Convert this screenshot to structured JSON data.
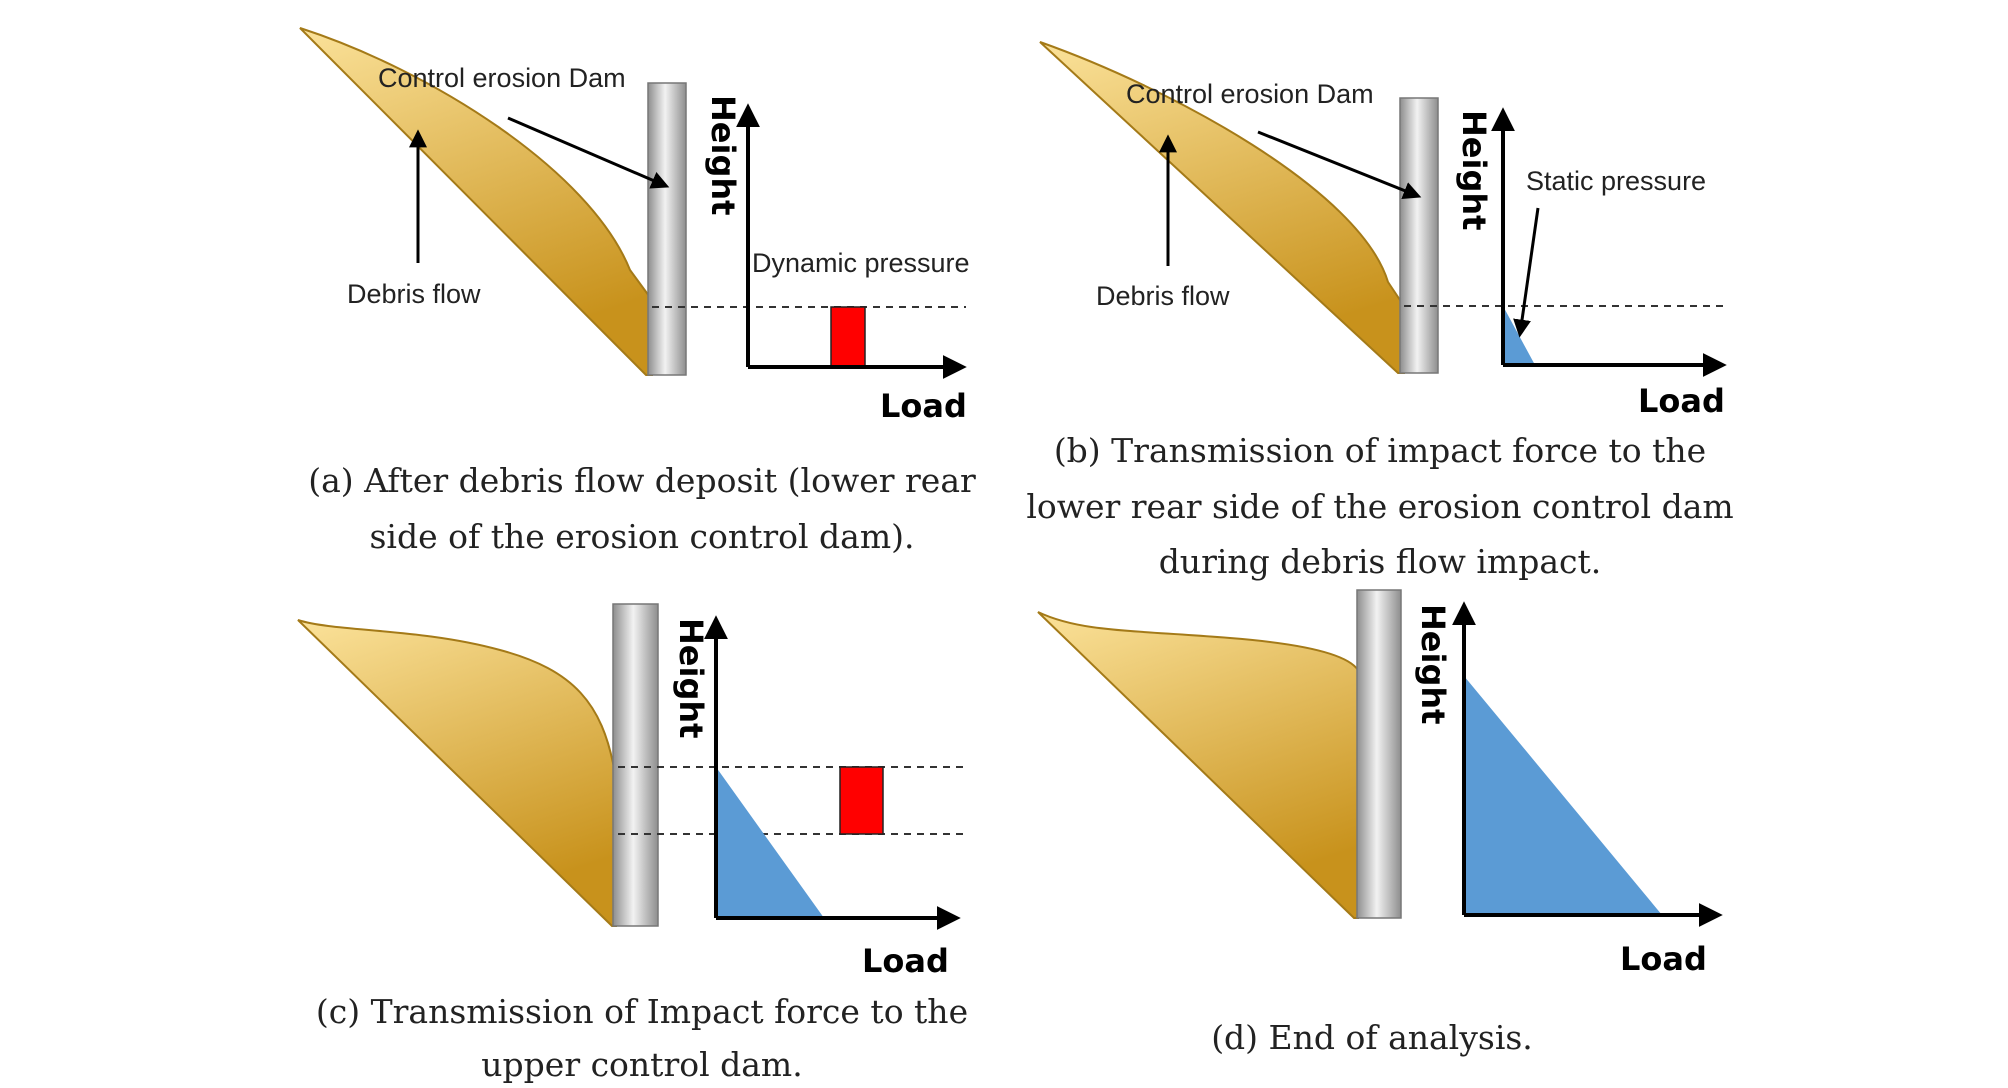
{
  "colors": {
    "debris_light": "#fbe29a",
    "debris_dark": "#c8921c",
    "dam_light": "#f2f2f2",
    "dam_dark": "#8e8e8e",
    "load_blue": "#5b9bd5",
    "dynamic_red": "#ff0000"
  },
  "panels": {
    "a": {
      "dam_label": "Control erosion Dam",
      "debris_label": "Debris flow",
      "pressure_label": "Dynamic pressure",
      "y_axis": "Height",
      "x_axis": "Load",
      "caption_line1": "(a) After debris flow deposit (lower rear",
      "caption_line2": "side of the erosion control dam)."
    },
    "b": {
      "dam_label": "Control erosion Dam",
      "debris_label": "Debris flow",
      "pressure_label": "Static pressure",
      "y_axis": "Height",
      "x_axis": "Load",
      "caption_line1": "(b) Transmission of impact force to the",
      "caption_line2": "lower rear side of the erosion control dam",
      "caption_line3": "during debris flow impact."
    },
    "c": {
      "y_axis": "Height",
      "x_axis": "Load",
      "caption_line1": "(c) Transmission of Impact force to the",
      "caption_line2": "upper control dam."
    },
    "d": {
      "y_axis": "Height",
      "x_axis": "Load",
      "caption_line1": "(d) End of analysis."
    }
  }
}
